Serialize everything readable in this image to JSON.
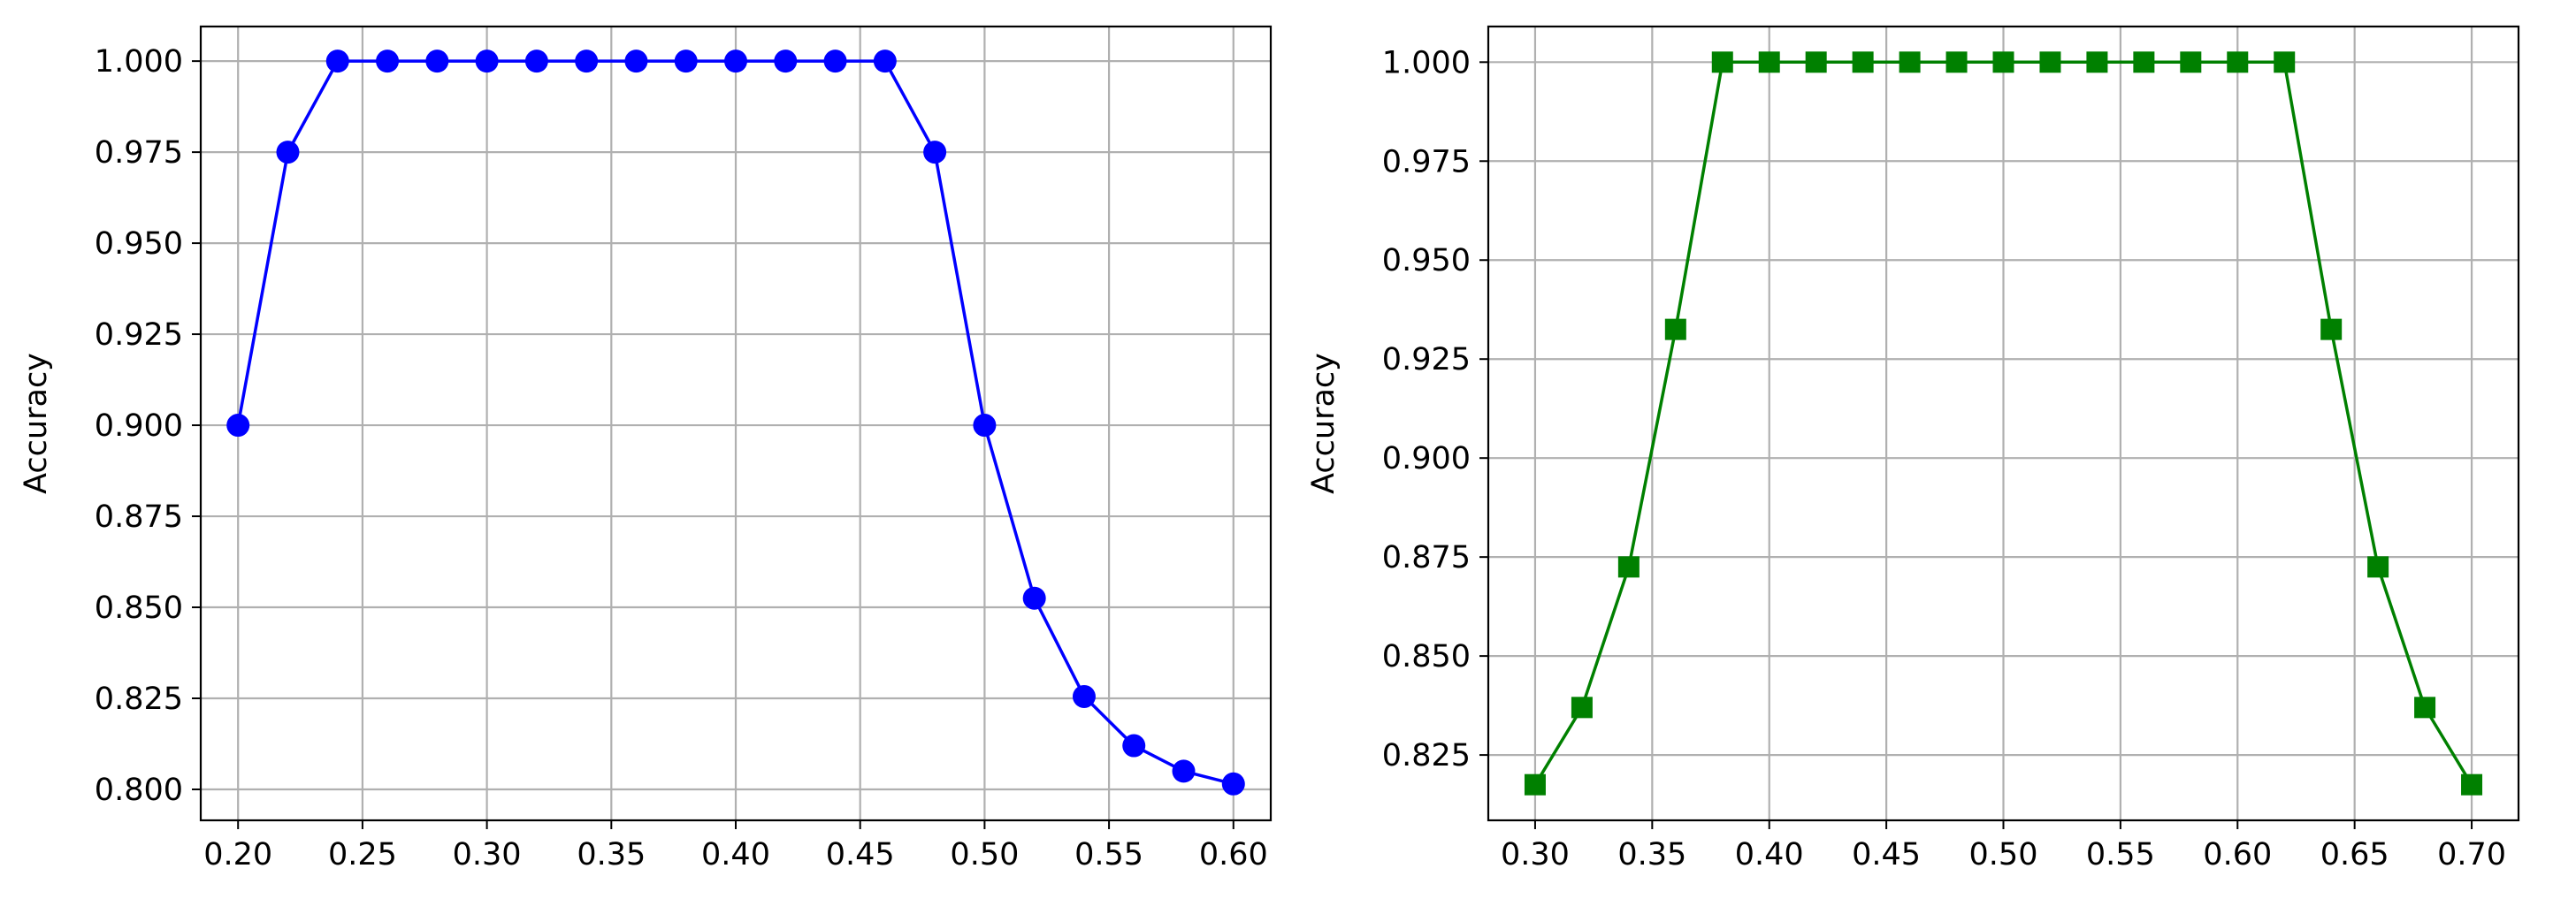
{
  "chart_data": [
    {
      "type": "line",
      "title": "",
      "xlabel": "",
      "ylabel": "Accuracy",
      "xlim": [
        0.185,
        0.615
      ],
      "ylim": [
        0.7915,
        1.0095
      ],
      "xticks": [
        "0.20",
        "0.25",
        "0.30",
        "0.35",
        "0.40",
        "0.45",
        "0.50",
        "0.55",
        "0.60"
      ],
      "yticks": [
        "0.800",
        "0.825",
        "0.850",
        "0.875",
        "0.900",
        "0.925",
        "0.950",
        "0.975",
        "1.000"
      ],
      "grid": true,
      "series": [
        {
          "color": "#0000ff",
          "marker": "circle",
          "x": [
            0.2,
            0.22,
            0.24,
            0.26,
            0.28,
            0.3,
            0.32,
            0.34,
            0.36,
            0.38,
            0.4,
            0.42,
            0.44,
            0.46,
            0.48,
            0.5,
            0.52,
            0.54,
            0.56,
            0.58,
            0.6
          ],
          "y": [
            0.9,
            0.975,
            1.0,
            1.0,
            1.0,
            1.0,
            1.0,
            1.0,
            1.0,
            1.0,
            1.0,
            1.0,
            1.0,
            1.0,
            0.975,
            0.9,
            0.8525,
            0.8255,
            0.812,
            0.805,
            0.8015
          ]
        }
      ]
    },
    {
      "type": "line",
      "title": "",
      "xlabel": "",
      "ylabel": "Accuracy",
      "xlim": [
        0.28,
        0.72
      ],
      "ylim": [
        0.8085,
        1.009
      ],
      "xticks": [
        "0.30",
        "0.35",
        "0.40",
        "0.45",
        "0.50",
        "0.55",
        "0.60",
        "0.65",
        "0.70"
      ],
      "yticks": [
        "0.825",
        "0.850",
        "0.875",
        "0.900",
        "0.925",
        "0.950",
        "0.975",
        "1.000"
      ],
      "grid": true,
      "series": [
        {
          "color": "#008000",
          "marker": "square",
          "x": [
            0.3,
            0.32,
            0.34,
            0.36,
            0.38,
            0.4,
            0.42,
            0.44,
            0.46,
            0.48,
            0.5,
            0.52,
            0.54,
            0.56,
            0.58,
            0.6,
            0.62,
            0.64,
            0.66,
            0.68,
            0.7
          ],
          "y": [
            0.8175,
            0.837,
            0.8725,
            0.9325,
            1.0,
            1.0,
            1.0,
            1.0,
            1.0,
            1.0,
            1.0,
            1.0,
            1.0,
            1.0,
            1.0,
            1.0,
            1.0,
            0.9325,
            0.8725,
            0.837,
            0.8175
          ]
        }
      ]
    }
  ]
}
